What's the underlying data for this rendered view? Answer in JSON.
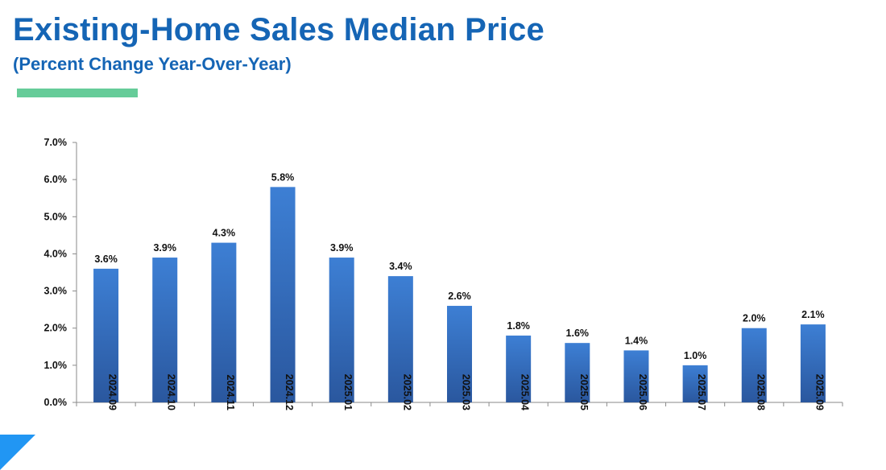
{
  "header": {
    "title": "Existing-Home Sales Median Price",
    "subtitle": "(Percent Change Year-Over-Year)"
  },
  "colors": {
    "title": "#1565b5",
    "accent_bar": "#66cc99",
    "bar_top": "#3d7fd4",
    "bar_bottom": "#2a579e",
    "axis": "#8a8a8a",
    "corner": "#2196f3"
  },
  "chart_data": {
    "type": "bar",
    "categories": [
      "2024.09",
      "2024.10",
      "2024.11",
      "2024.12",
      "2025.01",
      "2025.02",
      "2025.03",
      "2025.04",
      "2025.05",
      "2025.06",
      "2025.07",
      "2025.08",
      "2025.09"
    ],
    "values": [
      3.6,
      3.9,
      4.3,
      5.8,
      3.9,
      3.4,
      2.6,
      1.8,
      1.6,
      1.4,
      1.0,
      2.0,
      2.1
    ],
    "data_labels": [
      "3.6%",
      "3.9%",
      "4.3%",
      "5.8%",
      "3.9%",
      "3.4%",
      "2.6%",
      "1.8%",
      "1.6%",
      "1.4%",
      "1.0%",
      "2.0%",
      "2.1%"
    ],
    "ylim": [
      0,
      7
    ],
    "yticks": [
      0,
      1,
      2,
      3,
      4,
      5,
      6,
      7
    ],
    "ytick_labels": [
      "0.0%",
      "1.0%",
      "2.0%",
      "3.0%",
      "4.0%",
      "5.0%",
      "6.0%",
      "7.0%"
    ],
    "grid": false,
    "legend": "none",
    "xlabel": "",
    "ylabel": ""
  }
}
